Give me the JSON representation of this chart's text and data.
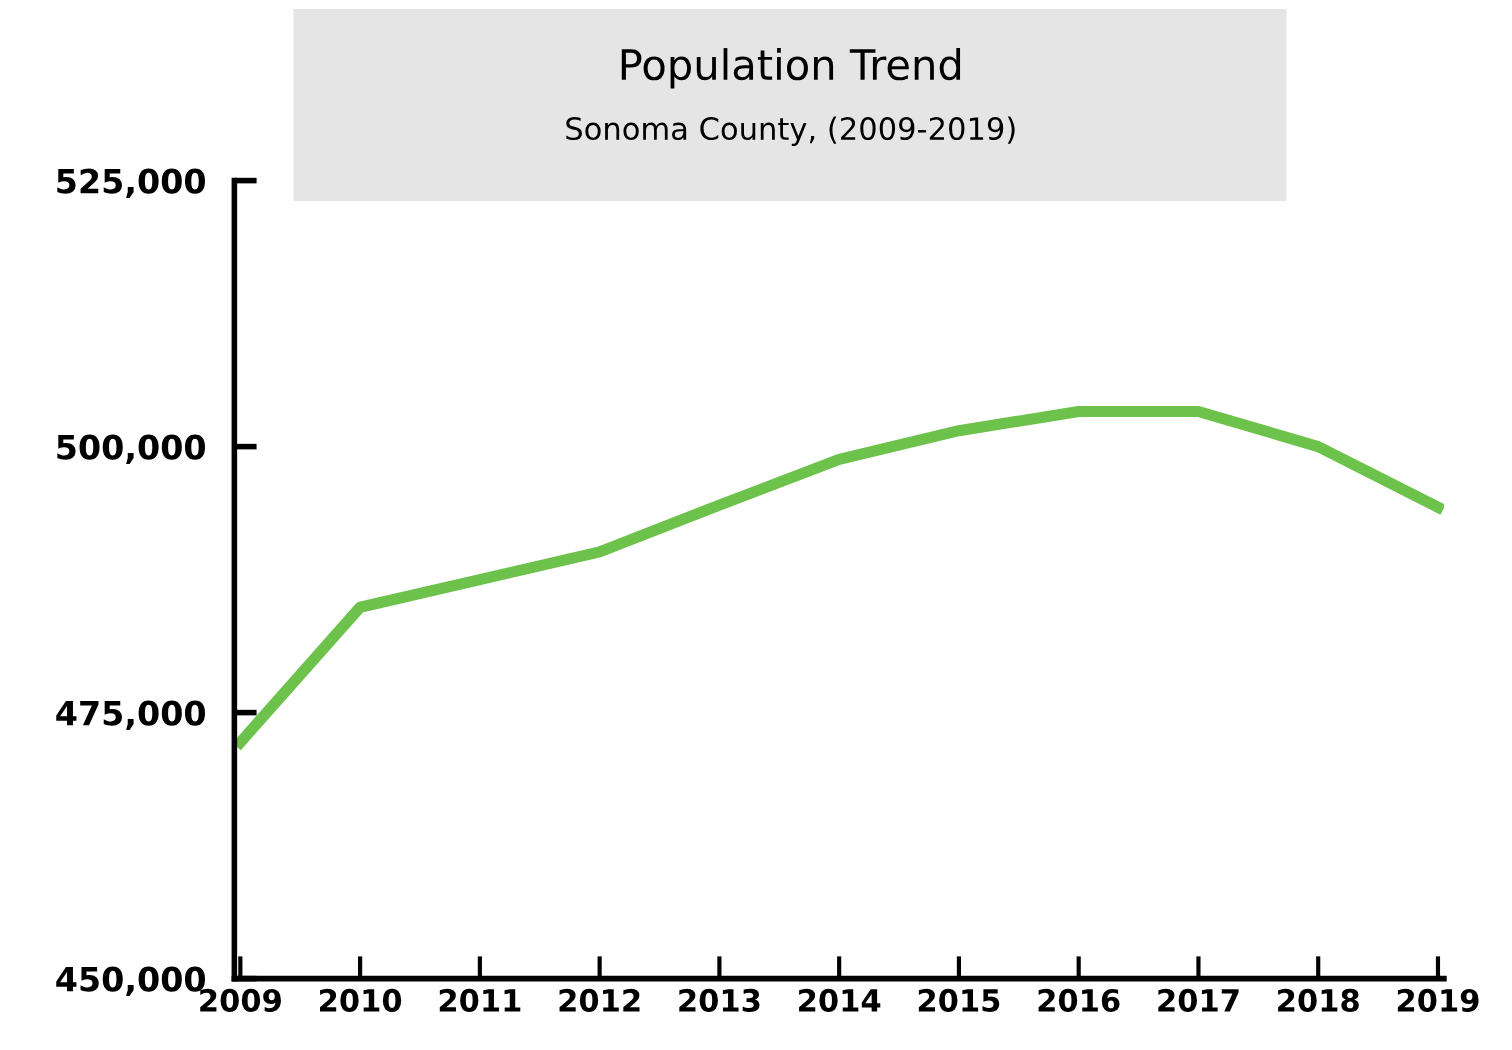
{
  "chart_data": {
    "type": "line",
    "title": "Population Trend",
    "subtitle": "Sonoma County, (2009-2019)",
    "categories": [
      "2009",
      "2010",
      "2011",
      "2012",
      "2013",
      "2014",
      "2015",
      "2016",
      "2017",
      "2018",
      "2019"
    ],
    "series": [
      {
        "color": "#6cc24a",
        "values": [
          472200,
          484900,
          487500,
          490100,
          494500,
          498800,
          501500,
          503300,
          503300,
          500000,
          494300
        ]
      }
    ],
    "ylim": [
      450000,
      525000
    ],
    "yticks": [
      {
        "value": 450000,
        "label": "450,000"
      },
      {
        "value": 475000,
        "label": "475,000"
      },
      {
        "value": 500000,
        "label": "500,000"
      },
      {
        "value": 525000,
        "label": "525,000"
      }
    ],
    "grid": false,
    "marker": "none",
    "line_style": "solid"
  }
}
